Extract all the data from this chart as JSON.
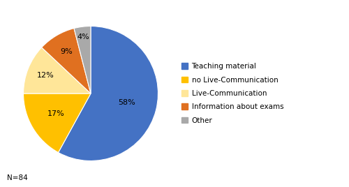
{
  "labels": [
    "Teaching material",
    "no Live-Communication",
    "Live-Communication",
    "Information about exams",
    "Other"
  ],
  "values": [
    58,
    17,
    12,
    9,
    4
  ],
  "colors": [
    "#4472C4",
    "#FFC000",
    "#FFE699",
    "#E07020",
    "#A9A9A9"
  ],
  "legend_labels": [
    "Teaching material",
    "no Live-Communication",
    "Live-Communication",
    "Information about exams",
    "Other"
  ],
  "note": "N=84",
  "background_color": "#FFFFFF",
  "startangle": 90,
  "label_radii": [
    0.55,
    0.6,
    0.72,
    0.72,
    0.85
  ]
}
